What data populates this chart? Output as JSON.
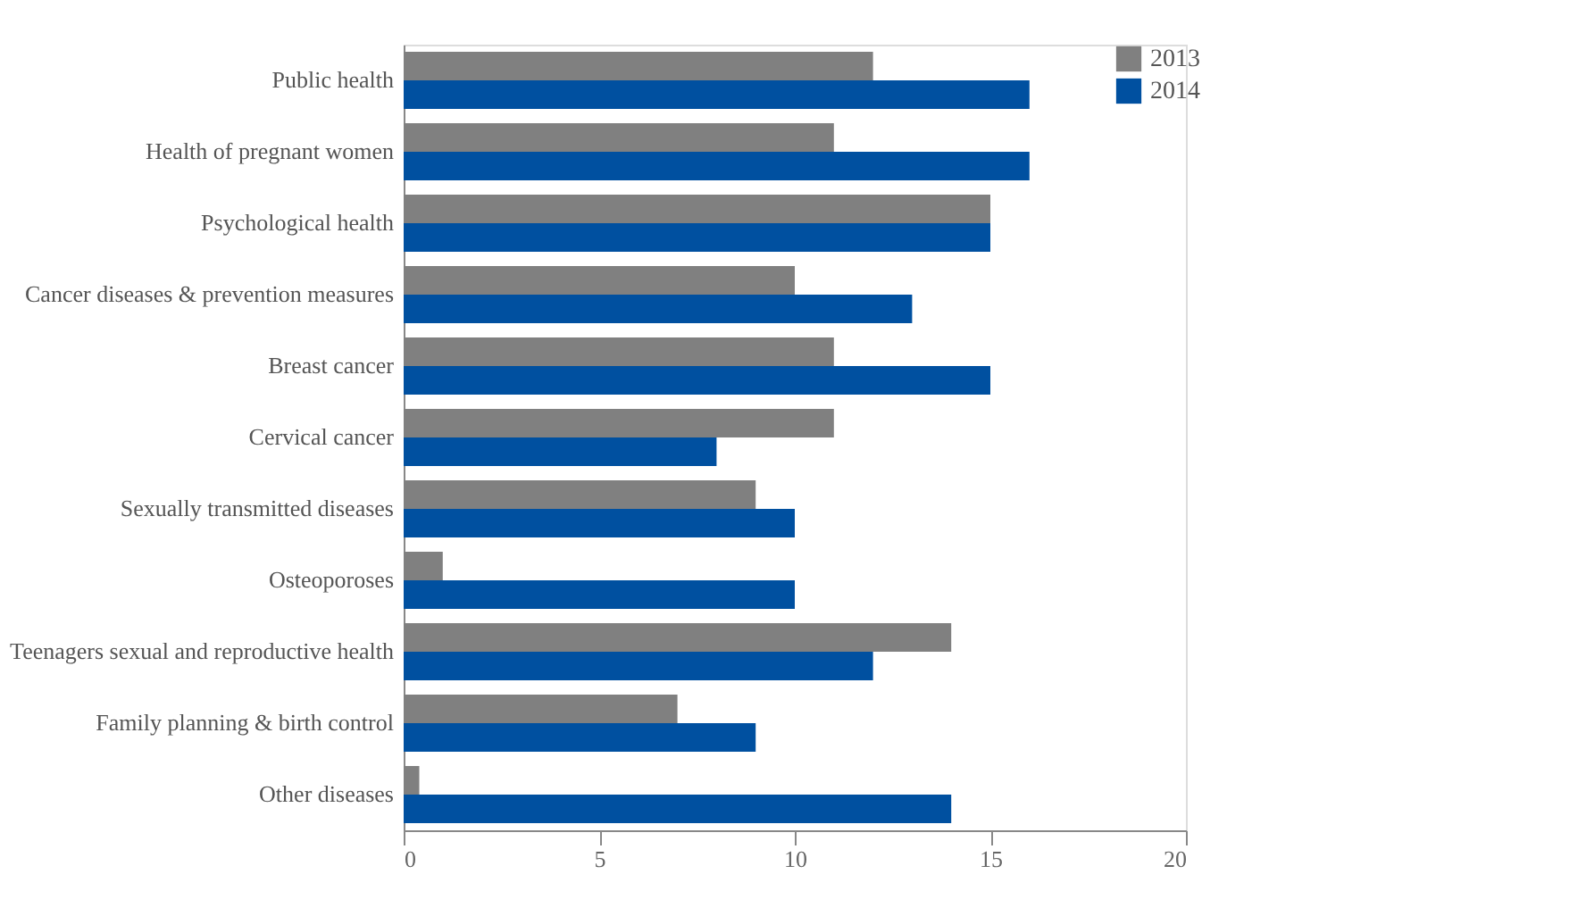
{
  "chart_data": {
    "type": "bar",
    "orientation": "horizontal",
    "categories": [
      "Public health",
      "Health of pregnant women",
      "Psychological health",
      "Cancer diseases & prevention measures",
      "Breast cancer",
      "Cervical cancer",
      "Sexually transmitted diseases",
      "Osteoporoses",
      "Teenagers sexual and reproductive health",
      "Family planning & birth control",
      "Other diseases"
    ],
    "series": [
      {
        "name": "2013",
        "color": "#808080",
        "values": [
          12,
          11,
          15,
          10,
          11,
          11,
          9,
          1,
          14,
          7,
          0.4
        ]
      },
      {
        "name": "2014",
        "color": "#0050a0",
        "values": [
          16,
          16,
          15,
          13,
          15,
          8,
          10,
          10,
          12,
          9,
          14
        ]
      }
    ],
    "xlim": [
      0,
      20
    ],
    "xticks": [
      0,
      5,
      10,
      15,
      20
    ],
    "grid": false,
    "legend": "right"
  }
}
